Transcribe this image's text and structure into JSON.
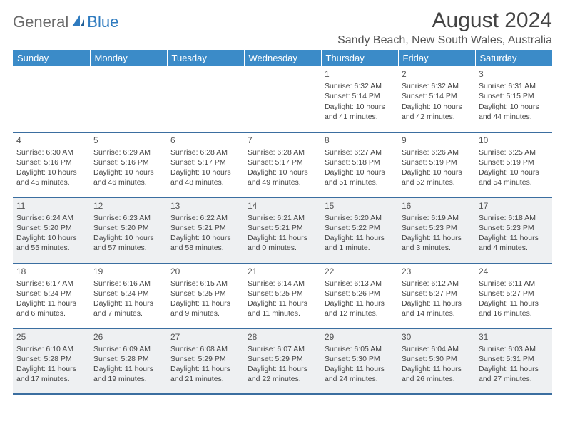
{
  "logo": {
    "part1": "General",
    "part2": "Blue"
  },
  "title": "August 2024",
  "location": "Sandy Beach, New South Wales, Australia",
  "colors": {
    "header_bg": "#3b8bc8",
    "header_text": "#ffffff",
    "row_even_bg": "#eef0f2",
    "row_odd_bg": "#ffffff",
    "row_border": "#3b6ea0",
    "logo_gray": "#6a6a6a",
    "logo_blue": "#2f7bbf"
  },
  "day_headers": [
    "Sunday",
    "Monday",
    "Tuesday",
    "Wednesday",
    "Thursday",
    "Friday",
    "Saturday"
  ],
  "weeks": [
    [
      null,
      null,
      null,
      null,
      {
        "n": "1",
        "sr": "Sunrise: 6:32 AM",
        "ss": "Sunset: 5:14 PM",
        "d1": "Daylight: 10 hours",
        "d2": "and 41 minutes."
      },
      {
        "n": "2",
        "sr": "Sunrise: 6:32 AM",
        "ss": "Sunset: 5:14 PM",
        "d1": "Daylight: 10 hours",
        "d2": "and 42 minutes."
      },
      {
        "n": "3",
        "sr": "Sunrise: 6:31 AM",
        "ss": "Sunset: 5:15 PM",
        "d1": "Daylight: 10 hours",
        "d2": "and 44 minutes."
      }
    ],
    [
      {
        "n": "4",
        "sr": "Sunrise: 6:30 AM",
        "ss": "Sunset: 5:16 PM",
        "d1": "Daylight: 10 hours",
        "d2": "and 45 minutes."
      },
      {
        "n": "5",
        "sr": "Sunrise: 6:29 AM",
        "ss": "Sunset: 5:16 PM",
        "d1": "Daylight: 10 hours",
        "d2": "and 46 minutes."
      },
      {
        "n": "6",
        "sr": "Sunrise: 6:28 AM",
        "ss": "Sunset: 5:17 PM",
        "d1": "Daylight: 10 hours",
        "d2": "and 48 minutes."
      },
      {
        "n": "7",
        "sr": "Sunrise: 6:28 AM",
        "ss": "Sunset: 5:17 PM",
        "d1": "Daylight: 10 hours",
        "d2": "and 49 minutes."
      },
      {
        "n": "8",
        "sr": "Sunrise: 6:27 AM",
        "ss": "Sunset: 5:18 PM",
        "d1": "Daylight: 10 hours",
        "d2": "and 51 minutes."
      },
      {
        "n": "9",
        "sr": "Sunrise: 6:26 AM",
        "ss": "Sunset: 5:19 PM",
        "d1": "Daylight: 10 hours",
        "d2": "and 52 minutes."
      },
      {
        "n": "10",
        "sr": "Sunrise: 6:25 AM",
        "ss": "Sunset: 5:19 PM",
        "d1": "Daylight: 10 hours",
        "d2": "and 54 minutes."
      }
    ],
    [
      {
        "n": "11",
        "sr": "Sunrise: 6:24 AM",
        "ss": "Sunset: 5:20 PM",
        "d1": "Daylight: 10 hours",
        "d2": "and 55 minutes."
      },
      {
        "n": "12",
        "sr": "Sunrise: 6:23 AM",
        "ss": "Sunset: 5:20 PM",
        "d1": "Daylight: 10 hours",
        "d2": "and 57 minutes."
      },
      {
        "n": "13",
        "sr": "Sunrise: 6:22 AM",
        "ss": "Sunset: 5:21 PM",
        "d1": "Daylight: 10 hours",
        "d2": "and 58 minutes."
      },
      {
        "n": "14",
        "sr": "Sunrise: 6:21 AM",
        "ss": "Sunset: 5:21 PM",
        "d1": "Daylight: 11 hours",
        "d2": "and 0 minutes."
      },
      {
        "n": "15",
        "sr": "Sunrise: 6:20 AM",
        "ss": "Sunset: 5:22 PM",
        "d1": "Daylight: 11 hours",
        "d2": "and 1 minute."
      },
      {
        "n": "16",
        "sr": "Sunrise: 6:19 AM",
        "ss": "Sunset: 5:23 PM",
        "d1": "Daylight: 11 hours",
        "d2": "and 3 minutes."
      },
      {
        "n": "17",
        "sr": "Sunrise: 6:18 AM",
        "ss": "Sunset: 5:23 PM",
        "d1": "Daylight: 11 hours",
        "d2": "and 4 minutes."
      }
    ],
    [
      {
        "n": "18",
        "sr": "Sunrise: 6:17 AM",
        "ss": "Sunset: 5:24 PM",
        "d1": "Daylight: 11 hours",
        "d2": "and 6 minutes."
      },
      {
        "n": "19",
        "sr": "Sunrise: 6:16 AM",
        "ss": "Sunset: 5:24 PM",
        "d1": "Daylight: 11 hours",
        "d2": "and 7 minutes."
      },
      {
        "n": "20",
        "sr": "Sunrise: 6:15 AM",
        "ss": "Sunset: 5:25 PM",
        "d1": "Daylight: 11 hours",
        "d2": "and 9 minutes."
      },
      {
        "n": "21",
        "sr": "Sunrise: 6:14 AM",
        "ss": "Sunset: 5:25 PM",
        "d1": "Daylight: 11 hours",
        "d2": "and 11 minutes."
      },
      {
        "n": "22",
        "sr": "Sunrise: 6:13 AM",
        "ss": "Sunset: 5:26 PM",
        "d1": "Daylight: 11 hours",
        "d2": "and 12 minutes."
      },
      {
        "n": "23",
        "sr": "Sunrise: 6:12 AM",
        "ss": "Sunset: 5:27 PM",
        "d1": "Daylight: 11 hours",
        "d2": "and 14 minutes."
      },
      {
        "n": "24",
        "sr": "Sunrise: 6:11 AM",
        "ss": "Sunset: 5:27 PM",
        "d1": "Daylight: 11 hours",
        "d2": "and 16 minutes."
      }
    ],
    [
      {
        "n": "25",
        "sr": "Sunrise: 6:10 AM",
        "ss": "Sunset: 5:28 PM",
        "d1": "Daylight: 11 hours",
        "d2": "and 17 minutes."
      },
      {
        "n": "26",
        "sr": "Sunrise: 6:09 AM",
        "ss": "Sunset: 5:28 PM",
        "d1": "Daylight: 11 hours",
        "d2": "and 19 minutes."
      },
      {
        "n": "27",
        "sr": "Sunrise: 6:08 AM",
        "ss": "Sunset: 5:29 PM",
        "d1": "Daylight: 11 hours",
        "d2": "and 21 minutes."
      },
      {
        "n": "28",
        "sr": "Sunrise: 6:07 AM",
        "ss": "Sunset: 5:29 PM",
        "d1": "Daylight: 11 hours",
        "d2": "and 22 minutes."
      },
      {
        "n": "29",
        "sr": "Sunrise: 6:05 AM",
        "ss": "Sunset: 5:30 PM",
        "d1": "Daylight: 11 hours",
        "d2": "and 24 minutes."
      },
      {
        "n": "30",
        "sr": "Sunrise: 6:04 AM",
        "ss": "Sunset: 5:30 PM",
        "d1": "Daylight: 11 hours",
        "d2": "and 26 minutes."
      },
      {
        "n": "31",
        "sr": "Sunrise: 6:03 AM",
        "ss": "Sunset: 5:31 PM",
        "d1": "Daylight: 11 hours",
        "d2": "and 27 minutes."
      }
    ]
  ]
}
